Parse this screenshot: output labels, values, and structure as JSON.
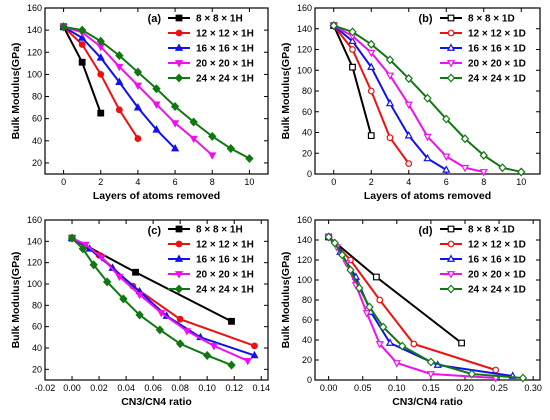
{
  "chart_data": [
    {
      "type": "line",
      "panel_label": "(a)",
      "xlabel": "Layers of atoms removed",
      "ylabel": "Bulk Modulus(GPa)",
      "xlim": [
        -1,
        11
      ],
      "ylim": [
        10,
        160
      ],
      "xticks": [
        0,
        2,
        4,
        6,
        8,
        10
      ],
      "yticks": [
        20,
        40,
        60,
        80,
        100,
        120,
        140,
        160
      ],
      "marker_style": "filled",
      "legend_position": "top-right",
      "series": [
        {
          "name": "8 × 8 × 1H",
          "color": "#000000",
          "marker": "square",
          "x": [
            0,
            1,
            2
          ],
          "y": [
            143,
            111,
            65
          ]
        },
        {
          "name": "12 × 12 × 1H",
          "color": "#ee1111",
          "marker": "circle",
          "x": [
            0,
            1,
            2,
            3,
            4
          ],
          "y": [
            143,
            127,
            100,
            68,
            42
          ]
        },
        {
          "name": "16 × 16 × 1H",
          "color": "#1111ee",
          "marker": "triangle",
          "x": [
            0,
            1,
            2,
            3,
            4,
            5,
            6
          ],
          "y": [
            143,
            133,
            115,
            93,
            70,
            50,
            33
          ]
        },
        {
          "name": "20 × 20 × 1H",
          "color": "#ee11ee",
          "marker": "triangle-down",
          "x": [
            0,
            1,
            2,
            3,
            4,
            5,
            6,
            7,
            8
          ],
          "y": [
            143,
            138,
            125,
            107,
            90,
            73,
            56,
            42,
            27
          ]
        },
        {
          "name": "24 × 24 × 1H",
          "color": "#117711",
          "marker": "diamond",
          "x": [
            0,
            1,
            2,
            3,
            4,
            5,
            6,
            7,
            8,
            9,
            10
          ],
          "y": [
            143,
            140,
            130,
            117,
            102,
            87,
            71,
            57,
            44,
            33,
            24
          ]
        }
      ]
    },
    {
      "type": "line",
      "panel_label": "(b)",
      "xlabel": "Layers of atoms removed",
      "ylabel": "Bulk Modulus(GPa)",
      "xlim": [
        -1,
        11
      ],
      "ylim": [
        0,
        160
      ],
      "xticks": [
        0,
        2,
        4,
        6,
        8,
        10
      ],
      "yticks": [
        0,
        20,
        40,
        60,
        80,
        100,
        120,
        140,
        160
      ],
      "marker_style": "open",
      "legend_position": "top-right",
      "series": [
        {
          "name": "8 × 8 × 1D",
          "color": "#000000",
          "marker": "square",
          "x": [
            0,
            1,
            2
          ],
          "y": [
            143,
            103,
            37
          ]
        },
        {
          "name": "12 × 12 × 1D",
          "color": "#ee1111",
          "marker": "circle",
          "x": [
            0,
            1,
            2,
            3,
            4
          ],
          "y": [
            143,
            120,
            80,
            35,
            10
          ]
        },
        {
          "name": "16 × 16 × 1D",
          "color": "#1111ee",
          "marker": "triangle",
          "x": [
            0,
            1,
            2,
            3,
            4,
            5,
            6
          ],
          "y": [
            143,
            128,
            103,
            68,
            37,
            15,
            4
          ]
        },
        {
          "name": "20 × 20 × 1D",
          "color": "#ee11ee",
          "marker": "triangle-down",
          "x": [
            0,
            1,
            2,
            3,
            4,
            5,
            6,
            7,
            8
          ],
          "y": [
            143,
            133,
            117,
            95,
            67,
            36,
            17,
            6,
            2
          ]
        },
        {
          "name": "24 × 24 × 1D",
          "color": "#117711",
          "marker": "diamond",
          "x": [
            0,
            1,
            2,
            3,
            4,
            5,
            6,
            7,
            8,
            9,
            10
          ],
          "y": [
            143,
            137,
            125,
            110,
            92,
            73,
            53,
            34,
            18,
            6,
            2
          ]
        }
      ]
    },
    {
      "type": "line",
      "panel_label": "(c)",
      "xlabel": "CN3/CN4 ratio",
      "ylabel": "Bulk Modulus(GPa)",
      "xlim": [
        -0.02,
        0.145
      ],
      "ylim": [
        10,
        160
      ],
      "xticks": [
        -0.02,
        0.0,
        0.02,
        0.04,
        0.06,
        0.08,
        0.1,
        0.12,
        0.14
      ],
      "xtick_labels": [
        "-0.02",
        "0.00",
        "0.02",
        "0.04",
        "0.06",
        "0.08",
        "0.10",
        "0.12",
        "0.14"
      ],
      "yticks": [
        20,
        40,
        60,
        80,
        100,
        120,
        140,
        160
      ],
      "marker_style": "filled",
      "legend_position": "top-right",
      "series": [
        {
          "name": "8 × 8 × 1H",
          "color": "#000000",
          "marker": "square",
          "x": [
            0,
            0.047,
            0.118
          ],
          "y": [
            143,
            111,
            65
          ]
        },
        {
          "name": "12 × 12 × 1H",
          "color": "#ee1111",
          "marker": "circle",
          "x": [
            0,
            0.02,
            0.045,
            0.08,
            0.135
          ],
          "y": [
            143,
            127,
            98,
            67,
            42
          ]
        },
        {
          "name": "16 × 16 × 1H",
          "color": "#1111ee",
          "marker": "triangle",
          "x": [
            0,
            0.013,
            0.03,
            0.05,
            0.07,
            0.095,
            0.135
          ],
          "y": [
            143,
            133,
            115,
            93,
            70,
            50,
            33
          ]
        },
        {
          "name": "20 × 20 × 1H",
          "color": "#ee11ee",
          "marker": "triangle-down",
          "x": [
            0,
            0.01,
            0.022,
            0.035,
            0.05,
            0.066,
            0.085,
            0.105,
            0.13
          ],
          "y": [
            143,
            137,
            125,
            107,
            90,
            73,
            56,
            42,
            28
          ]
        },
        {
          "name": "24 × 24 × 1H",
          "color": "#117711",
          "marker": "diamond",
          "x": [
            0,
            0.008,
            0.016,
            0.026,
            0.038,
            0.05,
            0.065,
            0.08,
            0.1,
            0.118
          ],
          "y": [
            143,
            133,
            118,
            102,
            86,
            71,
            57,
            44,
            33,
            24
          ]
        }
      ]
    },
    {
      "type": "line",
      "panel_label": "(d)",
      "xlabel": "CN3/CN4 ratio",
      "ylabel": "Bulk Modulus(GPa)",
      "xlim": [
        -0.02,
        0.31
      ],
      "ylim": [
        0,
        160
      ],
      "xticks": [
        0.0,
        0.05,
        0.1,
        0.15,
        0.2,
        0.25,
        0.3
      ],
      "xtick_labels": [
        "0.00",
        "0.05",
        "0.10",
        "0.15",
        "0.20",
        "0.25",
        "0.30"
      ],
      "yticks": [
        0,
        20,
        40,
        60,
        80,
        100,
        120,
        140,
        160
      ],
      "marker_style": "open",
      "legend_position": "top-right",
      "series": [
        {
          "name": "8 × 8 × 1D",
          "color": "#000000",
          "marker": "square",
          "x": [
            0,
            0.07,
            0.195
          ],
          "y": [
            143,
            103,
            37
          ]
        },
        {
          "name": "12 × 12 × 1D",
          "color": "#ee1111",
          "marker": "circle",
          "x": [
            0,
            0.032,
            0.075,
            0.125,
            0.245
          ],
          "y": [
            143,
            120,
            80,
            36,
            10
          ]
        },
        {
          "name": "16 × 16 × 1D",
          "color": "#1111ee",
          "marker": "triangle",
          "x": [
            0,
            0.017,
            0.04,
            0.062,
            0.09,
            0.16,
            0.27
          ],
          "y": [
            143,
            128,
            103,
            68,
            37,
            15,
            4
          ]
        },
        {
          "name": "20 × 20 × 1D",
          "color": "#ee11ee",
          "marker": "triangle-down",
          "x": [
            0,
            0.012,
            0.026,
            0.04,
            0.056,
            0.075,
            0.1,
            0.15,
            0.245
          ],
          "y": [
            143,
            133,
            117,
            95,
            67,
            36,
            17,
            6,
            2
          ]
        },
        {
          "name": "24 × 24 × 1D",
          "color": "#117711",
          "marker": "diamond",
          "x": [
            0,
            0.009,
            0.02,
            0.032,
            0.045,
            0.06,
            0.08,
            0.108,
            0.15,
            0.21,
            0.285
          ],
          "y": [
            143,
            137,
            125,
            110,
            92,
            73,
            53,
            34,
            18,
            6,
            2
          ]
        }
      ]
    }
  ]
}
